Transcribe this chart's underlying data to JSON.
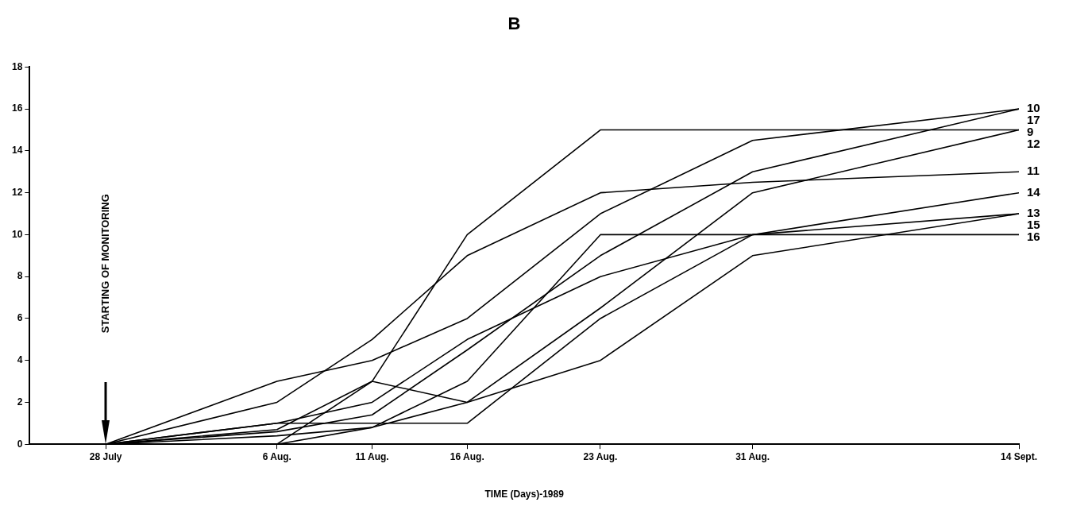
{
  "chart_data": {
    "type": "line",
    "title": "B",
    "xlabel": "TIME (Days)-1989",
    "x": [
      "1989-07-28",
      "1989-08-06",
      "1989-08-11",
      "1989-08-16",
      "1989-08-23",
      "1989-08-31",
      "1989-09-14"
    ],
    "series": [
      {
        "name": "9",
        "color": "#000000",
        "values": [
          null,
          0,
          3,
          10,
          15,
          15,
          15
        ]
      },
      {
        "name": "10",
        "color": "#000000",
        "values": [
          0,
          3,
          4,
          6,
          11,
          14.5,
          16
        ]
      },
      {
        "name": "11",
        "color": "#000000",
        "values": [
          0,
          2,
          5,
          9,
          12,
          12.5,
          13
        ]
      },
      {
        "name": "12",
        "color": "#000000",
        "values": [
          null,
          0,
          0.8,
          2,
          6.5,
          12,
          15
        ]
      },
      {
        "name": "13",
        "color": "#000000",
        "values": [
          0,
          1,
          2,
          5,
          8,
          10,
          11
        ]
      },
      {
        "name": "14",
        "color": "#000000",
        "values": [
          0,
          1,
          1,
          1,
          6,
          10,
          12
        ]
      },
      {
        "name": "15",
        "color": "#000000",
        "values": [
          0,
          0.7,
          3,
          2,
          4,
          9,
          11
        ]
      },
      {
        "name": "16",
        "color": "#000000",
        "values": [
          0,
          0.4,
          0.8,
          3,
          10,
          10,
          10
        ]
      },
      {
        "name": "17",
        "color": "#000000",
        "values": [
          0,
          0.6,
          1.4,
          4.5,
          9,
          13,
          16
        ]
      }
    ],
    "xlim": [
      "1989-07-24",
      "1989-09-14"
    ],
    "xticks": [
      {
        "value": "1989-07-28",
        "label": "28 July"
      },
      {
        "value": "1989-08-06",
        "label": "6 Aug."
      },
      {
        "value": "1989-08-11",
        "label": "11 Aug."
      },
      {
        "value": "1989-08-16",
        "label": "16 Aug."
      },
      {
        "value": "1989-08-23",
        "label": "23 Aug."
      },
      {
        "value": "1989-08-31",
        "label": "31 Aug."
      },
      {
        "value": "1989-09-14",
        "label": "14 Sept."
      }
    ],
    "ylim": [
      0,
      18
    ],
    "yticks": [
      0,
      2,
      4,
      6,
      8,
      10,
      12,
      14,
      16,
      18
    ],
    "annotations": [
      "STARTING OF MONITORING"
    ],
    "grid": false,
    "legend": false,
    "marker": "none",
    "line_style": "solid"
  }
}
